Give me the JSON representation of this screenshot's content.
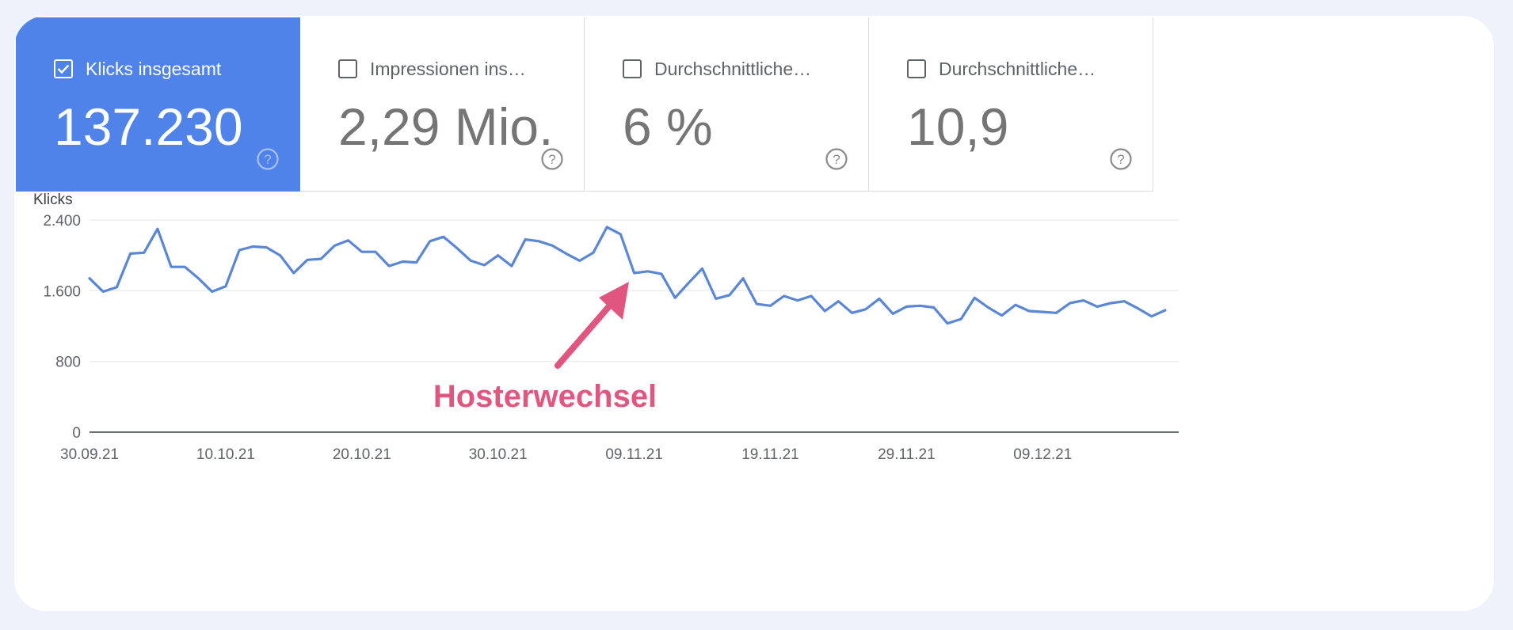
{
  "metrics": [
    {
      "label": "Klicks insgesamt",
      "value": "137.230",
      "checked": true
    },
    {
      "label": "Impressionen ins…",
      "value": "2,29 Mio.",
      "checked": false
    },
    {
      "label": "Durchschnittliche…",
      "value": "6 %",
      "checked": false
    },
    {
      "label": "Durchschnittliche…",
      "value": "10,9",
      "checked": false
    }
  ],
  "annotation": {
    "text": "Hosterwechsel",
    "color": "#e0567f"
  },
  "colors": {
    "accent": "#4f83ea",
    "line": "#5a86d6",
    "grid": "#ececec",
    "axis_text": "#5f6368"
  },
  "icons": {
    "help": "help-circle-icon",
    "checkbox": "checkbox-icon"
  },
  "chart_data": {
    "type": "line",
    "ylabel": "Klicks",
    "ylim": [
      0,
      2400
    ],
    "yticks": [
      0,
      800,
      1600,
      2400
    ],
    "ytick_labels": [
      "0",
      "800",
      "1.600",
      "2.400"
    ],
    "x_start": "30.09.21",
    "x_end": "25.12.21",
    "xticks": [
      "30.09.21",
      "10.10.21",
      "20.10.21",
      "30.10.21",
      "09.11.21",
      "19.11.21",
      "29.11.21",
      "09.12.21"
    ],
    "grid": true,
    "series": [
      {
        "values": [
          1740,
          1590,
          1640,
          2020,
          2030,
          2300,
          1870,
          1870,
          1740,
          1590,
          1650,
          2060,
          2100,
          2090,
          2000,
          1800,
          1950,
          1960,
          2110,
          2170,
          2040,
          2040,
          1880,
          1930,
          1920,
          2160,
          2210,
          2080,
          1940,
          1890,
          2000,
          1880,
          2180,
          2160,
          2110,
          2020,
          1940,
          2030,
          2320,
          2240,
          1800,
          1820,
          1790,
          1520,
          1690,
          1850,
          1510,
          1550,
          1740,
          1450,
          1430,
          1540,
          1490,
          1540,
          1370,
          1480,
          1350,
          1390,
          1510,
          1340,
          1420,
          1430,
          1410,
          1230,
          1280,
          1520,
          1410,
          1320,
          1440,
          1370,
          1360,
          1350,
          1460,
          1490,
          1420,
          1460,
          1480,
          1400,
          1310,
          1380
        ]
      }
    ]
  }
}
